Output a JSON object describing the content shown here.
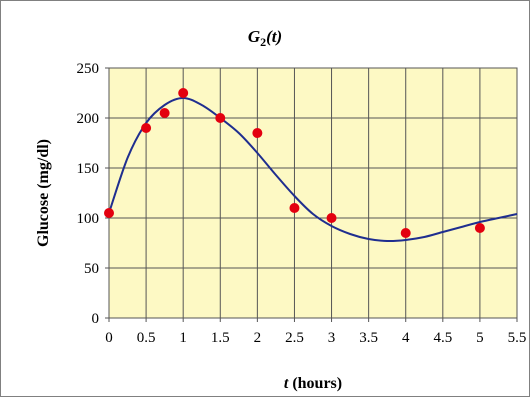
{
  "chart_data": {
    "type": "scatter",
    "title_main": "G",
    "title_sub": "2",
    "title_arg": "(t)",
    "ylabel": "Glucose (mg/dl)",
    "xlabel_var": "t",
    "xlabel_unit": " (hours)",
    "xlim": [
      0,
      5.5
    ],
    "ylim": [
      0,
      250
    ],
    "x_ticks": [
      0,
      0.5,
      1,
      1.5,
      2,
      2.5,
      3,
      3.5,
      4,
      4.5,
      5,
      5.5
    ],
    "x_tick_labels": [
      "0",
      "0.5",
      "1",
      "1.5",
      "2",
      "2.5",
      "3",
      "3.5",
      "4",
      "4.5",
      "5",
      "5.5"
    ],
    "y_ticks": [
      0,
      50,
      100,
      150,
      200,
      250
    ],
    "y_tick_labels": [
      "0",
      "50",
      "100",
      "150",
      "200",
      "250"
    ],
    "grid": true,
    "series": [
      {
        "kind": "points",
        "color": "#e3000f",
        "x": [
          0,
          0.5,
          0.75,
          1,
          1.5,
          2,
          2.5,
          3,
          4,
          5
        ],
        "y": [
          105,
          190,
          205,
          225,
          200,
          185,
          110,
          100,
          85,
          90
        ]
      },
      {
        "kind": "curve",
        "color": "#1f2e8f",
        "x": [
          0,
          0.25,
          0.5,
          0.75,
          1.0,
          1.25,
          1.5,
          1.75,
          2.0,
          2.25,
          2.5,
          2.75,
          3.0,
          3.25,
          3.5,
          3.75,
          4.0,
          4.25,
          4.5,
          4.75,
          5.0,
          5.25,
          5.5
        ],
        "y": [
          105,
          160,
          195,
          213,
          220,
          213,
          200,
          185,
          165,
          143,
          122,
          104,
          92,
          84,
          79,
          77,
          78,
          81,
          86,
          91,
          96,
          100,
          104
        ]
      }
    ],
    "colors": {
      "plot_background": "#fdf9c4",
      "grid": "#555555",
      "frame": "#808080",
      "page_background": "#ffffff"
    }
  }
}
